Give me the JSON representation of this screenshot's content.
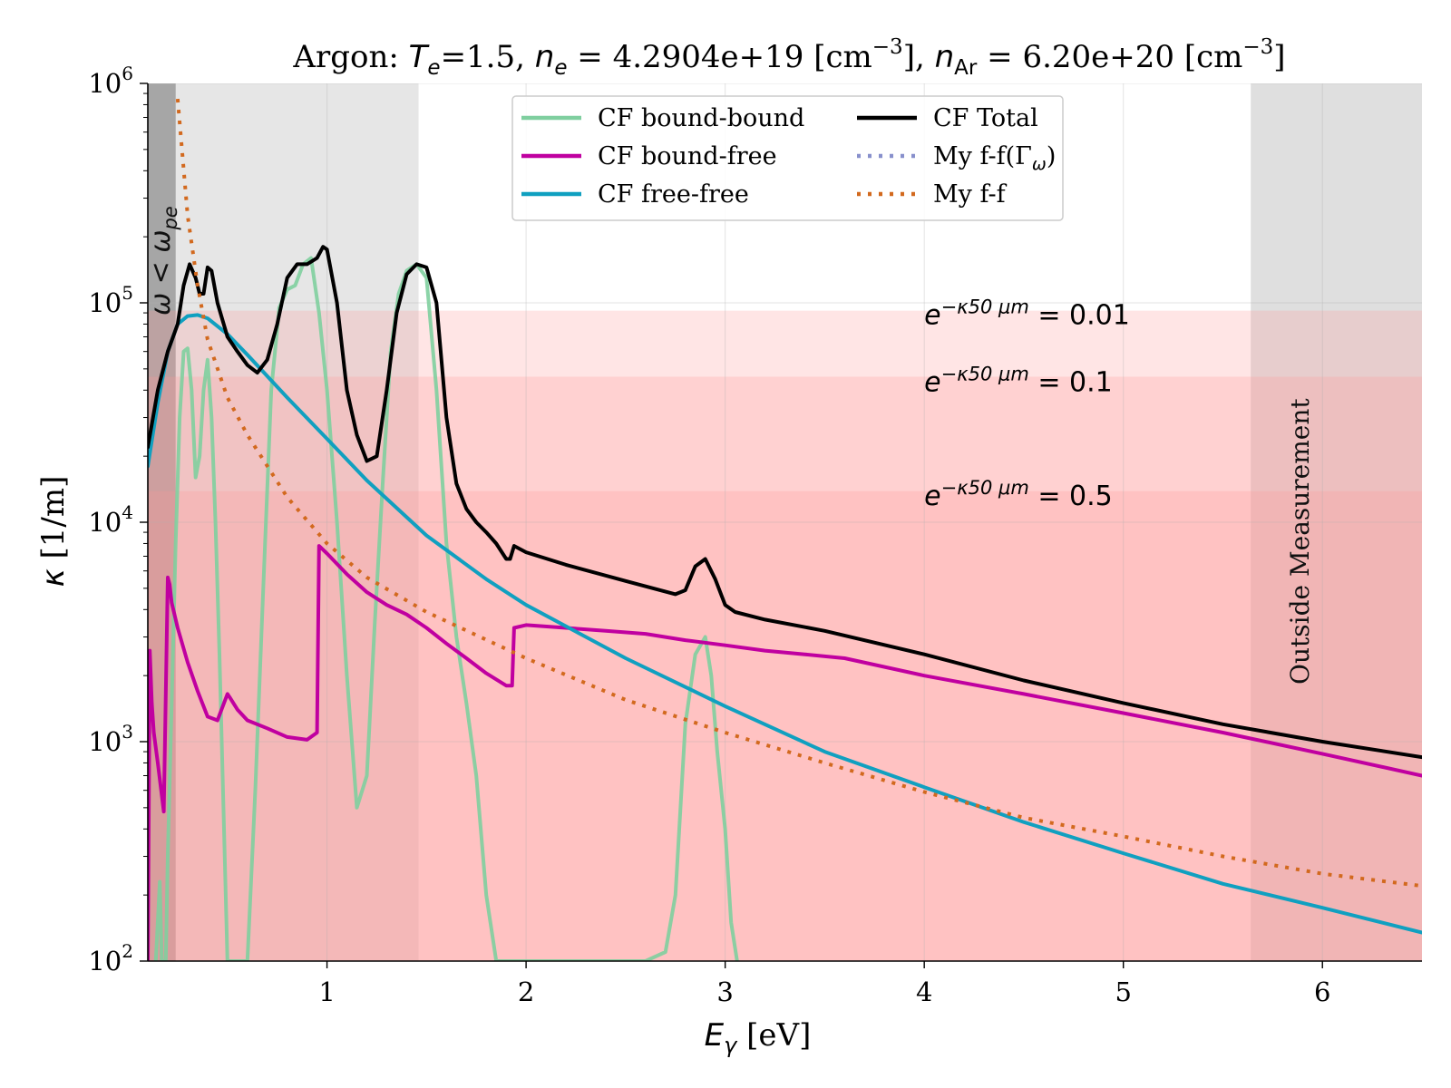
{
  "chart_data": {
    "type": "line",
    "title": {
      "prefix": "Argon: ",
      "te_symbol": "T",
      "te_sub": "e",
      "te_value": "=1.5, ",
      "ne_symbol": "n",
      "ne_sub": "e",
      "ne_value": " = 4.2904e+19 [cm",
      "ne_exp": "−3",
      "ne_close": "], ",
      "nar_symbol": "n",
      "nar_sub": "Ar",
      "nar_value": " = 6.20e+20 [cm",
      "nar_exp": "−3",
      "nar_close": "]"
    },
    "xlabel": {
      "symbol": "E",
      "sub": "γ",
      "unit": " [eV]"
    },
    "ylabel": {
      "symbol": "κ",
      "unit": " [1/m]"
    },
    "x_scale": "linear",
    "y_scale": "log",
    "xlim": [
      0.1,
      6.5
    ],
    "ylim": [
      100,
      1000000
    ],
    "x_ticks": [
      1,
      2,
      3,
      4,
      5,
      6
    ],
    "x_tick_labels": [
      "1",
      "2",
      "3",
      "4",
      "5",
      "6"
    ],
    "y_ticks": [
      100,
      1000,
      10000,
      100000,
      1000000
    ],
    "y_tick_labels": [
      {
        "base": "10",
        "exp": "2"
      },
      {
        "base": "10",
        "exp": "3"
      },
      {
        "base": "10",
        "exp": "4"
      },
      {
        "base": "10",
        "exp": "5"
      },
      {
        "base": "10",
        "exp": "6"
      }
    ],
    "grid": true,
    "legend_placement": "top-center",
    "shaded_regions": [
      {
        "kind": "x-band",
        "x0": 0.1,
        "x1": 0.24,
        "color": "#808080",
        "alpha": 0.7,
        "label": "ω < ω",
        "label_sub": "pe"
      },
      {
        "kind": "x-band",
        "x0": 0.24,
        "x1": 1.46,
        "color": "#808080",
        "alpha": 0.2
      },
      {
        "kind": "x-band",
        "x0": 5.64,
        "x1": 6.5,
        "color": "#808080",
        "alpha": 0.25,
        "label": "Outside Measurement"
      },
      {
        "kind": "y-band",
        "y0": 100,
        "y1": 92103,
        "color": "#ff9999",
        "alpha": 0.25
      },
      {
        "kind": "y-band",
        "y0": 100,
        "y1": 46052,
        "color": "#ff9999",
        "alpha": 0.25
      },
      {
        "kind": "y-band",
        "y0": 100,
        "y1": 13863,
        "color": "#ff9999",
        "alpha": 0.25
      }
    ],
    "annotations": [
      {
        "base": "e",
        "exp": "−κ50 μm",
        "rest": " = 0.01",
        "x": 4.0,
        "y": 80000
      },
      {
        "base": "e",
        "exp": "−κ50 μm",
        "rest": " = 0.1",
        "x": 4.0,
        "y": 39500
      },
      {
        "base": "e",
        "exp": "−κ50 μm",
        "rest": " = 0.5",
        "x": 4.0,
        "y": 12000
      }
    ],
    "series": [
      {
        "name": "CF bound-bound",
        "color": "#7fcf9f",
        "style": "solid",
        "x": [
          0.14,
          0.16,
          0.17,
          0.19,
          0.2,
          0.22,
          0.24,
          0.26,
          0.28,
          0.3,
          0.32,
          0.34,
          0.36,
          0.38,
          0.4,
          0.42,
          0.44,
          0.46,
          0.48,
          0.5,
          0.53,
          0.56,
          0.6,
          0.64,
          0.68,
          0.72,
          0.76,
          0.8,
          0.84,
          0.88,
          0.92,
          0.96,
          1.0,
          1.05,
          1.1,
          1.15,
          1.2,
          1.24,
          1.28,
          1.32,
          1.36,
          1.4,
          1.45,
          1.5,
          1.55,
          1.6,
          1.65,
          1.7,
          1.75,
          1.8,
          1.85,
          1.9,
          1.95,
          2.6,
          2.7,
          2.75,
          2.8,
          2.85,
          2.9,
          2.93,
          2.96,
          3.0,
          3.03,
          3.06
        ],
        "y": [
          100,
          230,
          100,
          100,
          300,
          1500,
          8000,
          30000,
          60000,
          62000,
          40000,
          16000,
          20000,
          40000,
          55000,
          30000,
          10000,
          2500,
          500,
          100,
          100,
          100,
          100,
          600,
          5000,
          40000,
          95000,
          115000,
          120000,
          150000,
          160000,
          90000,
          40000,
          10000,
          2000,
          500,
          700,
          3500,
          15000,
          60000,
          110000,
          140000,
          150000,
          130000,
          40000,
          8000,
          3000,
          1500,
          700,
          200,
          100,
          100,
          100,
          100,
          110,
          200,
          1200,
          2500,
          3000,
          2000,
          900,
          400,
          150,
          100
        ]
      },
      {
        "name": "CF bound-free",
        "color": "#c000a0",
        "style": "solid",
        "x": [
          0.1,
          0.11,
          0.12,
          0.13,
          0.15,
          0.18,
          0.2,
          0.21,
          0.22,
          0.25,
          0.3,
          0.35,
          0.4,
          0.45,
          0.5,
          0.51,
          0.55,
          0.6,
          0.7,
          0.8,
          0.9,
          0.95,
          0.96,
          1.0,
          1.1,
          1.2,
          1.3,
          1.4,
          1.5,
          1.6,
          1.7,
          1.8,
          1.9,
          1.93,
          1.94,
          2.0,
          2.2,
          2.4,
          2.6,
          2.8,
          3.0,
          3.2,
          3.4,
          3.6,
          4.0,
          4.5,
          5.0,
          5.5,
          6.0,
          6.5
        ],
        "y": [
          100,
          2600,
          1500,
          1100,
          800,
          480,
          5600,
          5200,
          4300,
          3300,
          2300,
          1700,
          1300,
          1250,
          1650,
          1600,
          1400,
          1250,
          1150,
          1050,
          1020,
          1100,
          7800,
          7200,
          5800,
          4800,
          4200,
          3800,
          3300,
          2800,
          2400,
          2050,
          1800,
          1800,
          3300,
          3400,
          3300,
          3200,
          3100,
          2900,
          2750,
          2600,
          2500,
          2400,
          2000,
          1650,
          1350,
          1100,
          880,
          700
        ]
      },
      {
        "name": "CF free-free",
        "color": "#10a0c0",
        "style": "solid",
        "x": [
          0.1,
          0.15,
          0.2,
          0.25,
          0.3,
          0.35,
          0.4,
          0.5,
          0.6,
          0.8,
          1.0,
          1.2,
          1.5,
          1.8,
          2.0,
          2.5,
          3.0,
          3.5,
          4.0,
          4.5,
          5.0,
          5.5,
          6.0,
          6.5
        ],
        "y": [
          18000,
          35000,
          60000,
          80000,
          87000,
          88000,
          85000,
          72000,
          58000,
          37000,
          24000,
          15500,
          8700,
          5500,
          4200,
          2400,
          1450,
          900,
          620,
          430,
          310,
          225,
          175,
          135
        ]
      },
      {
        "name": "CF Total",
        "color": "#000000",
        "style": "solid",
        "x": [
          0.1,
          0.15,
          0.2,
          0.25,
          0.28,
          0.31,
          0.34,
          0.36,
          0.38,
          0.4,
          0.42,
          0.45,
          0.5,
          0.55,
          0.6,
          0.65,
          0.7,
          0.75,
          0.8,
          0.85,
          0.9,
          0.95,
          0.98,
          1.0,
          1.05,
          1.1,
          1.15,
          1.2,
          1.25,
          1.3,
          1.35,
          1.4,
          1.45,
          1.5,
          1.55,
          1.6,
          1.65,
          1.7,
          1.75,
          1.8,
          1.85,
          1.9,
          1.92,
          1.94,
          2.0,
          2.2,
          2.5,
          2.75,
          2.8,
          2.85,
          2.9,
          2.95,
          3.0,
          3.05,
          3.2,
          3.5,
          4.0,
          4.5,
          5.0,
          5.5,
          6.0,
          6.5
        ],
        "y": [
          22000,
          40000,
          60000,
          80000,
          120000,
          150000,
          130000,
          110000,
          110000,
          145000,
          140000,
          100000,
          70000,
          60000,
          52000,
          48000,
          55000,
          80000,
          130000,
          150000,
          150000,
          160000,
          180000,
          175000,
          100000,
          40000,
          25000,
          19000,
          20000,
          40000,
          90000,
          135000,
          150000,
          145000,
          100000,
          30000,
          15000,
          11500,
          10000,
          9000,
          8000,
          6800,
          6800,
          7800,
          7300,
          6400,
          5400,
          4700,
          4900,
          6300,
          6800,
          5500,
          4200,
          3900,
          3600,
          3200,
          2500,
          1900,
          1500,
          1200,
          1000,
          850
        ]
      },
      {
        "name": "My f-f(Γω)",
        "label_base": "My f-f(Γ",
        "label_sub": "ω",
        "label_close": ")",
        "color": "#8890cc",
        "style": "dotted",
        "x": [],
        "y": []
      },
      {
        "name": "My f-f",
        "color": "#d2691e",
        "style": "dotted",
        "x": [
          0.25,
          0.3,
          0.35,
          0.4,
          0.5,
          0.6,
          0.8,
          1.0,
          1.2,
          1.5,
          2.0,
          2.5,
          3.0,
          3.5,
          4.0,
          4.5,
          5.0,
          5.5,
          6.0,
          6.5
        ],
        "y": [
          850000,
          250000,
          120000,
          68000,
          37000,
          25000,
          13000,
          8000,
          5600,
          3900,
          2400,
          1550,
          1100,
          800,
          590,
          450,
          370,
          300,
          250,
          220
        ]
      }
    ],
    "legend": [
      {
        "name": "CF bound-bound",
        "color": "#7fcf9f",
        "style": "solid"
      },
      {
        "name": "CF bound-free",
        "color": "#c000a0",
        "style": "solid"
      },
      {
        "name": "CF free-free",
        "color": "#10a0c0",
        "style": "solid"
      },
      {
        "name": "CF Total",
        "color": "#000000",
        "style": "solid"
      },
      {
        "name": "My f-f(Γω)",
        "base": "My f-f(Γ",
        "sub": "ω",
        "close": ")",
        "color": "#8890cc",
        "style": "dotted"
      },
      {
        "name": "My f-f",
        "color": "#d2691e",
        "style": "dotted"
      }
    ]
  }
}
